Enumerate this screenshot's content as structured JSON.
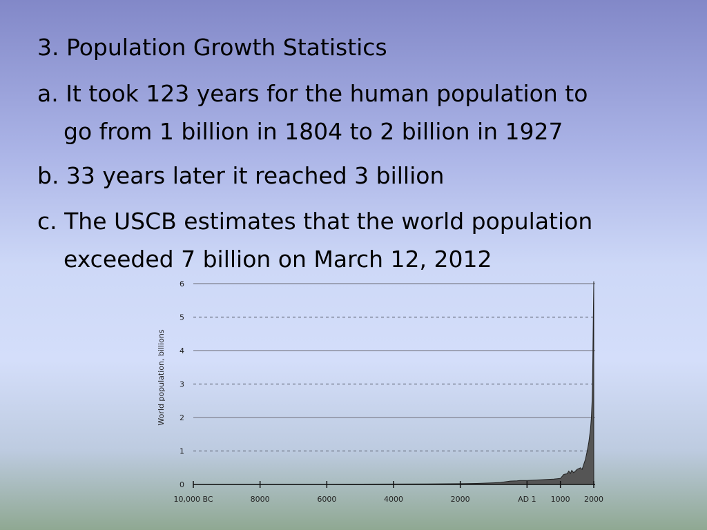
{
  "slide": {
    "heading": "3. Population Growth Statistics",
    "bullets": [
      {
        "line1": "a. It took 123 years for the human population to",
        "line2": "go from 1 billion in 1804 to 2 billion in 1927"
      },
      {
        "line1": "b. 33 years later it reached 3 billion",
        "line2": ""
      },
      {
        "line1": "c. The USCB estimates that the world population",
        "line2": "exceeded 7 billion on March 12, 2012"
      }
    ]
  },
  "chart_data": {
    "type": "area",
    "ylabel": "World population, billions",
    "xlabel": "",
    "ylim": [
      0,
      6
    ],
    "xlim": [
      -10000,
      2000
    ],
    "y_ticks": [
      0,
      1,
      2,
      3,
      4,
      5,
      6
    ],
    "x_ticks": [
      {
        "value": -10000,
        "label": "10,000 BC"
      },
      {
        "value": -8000,
        "label": "8000"
      },
      {
        "value": -6000,
        "label": "6000"
      },
      {
        "value": -4000,
        "label": "4000"
      },
      {
        "value": -2000,
        "label": "2000"
      },
      {
        "value": 0,
        "label": "AD 1"
      },
      {
        "value": 1000,
        "label": "1000"
      },
      {
        "value": 2000,
        "label": "2000"
      }
    ],
    "grid": "horizontal, solid at even values, dashed at odd values",
    "fill_color": "#555555",
    "x": [
      -10000,
      -8000,
      -6000,
      -5000,
      -4000,
      -3000,
      -2000,
      -1500,
      -1000,
      -800,
      -500,
      -300,
      -200,
      0,
      200,
      400,
      600,
      800,
      1000,
      1100,
      1200,
      1250,
      1300,
      1340,
      1400,
      1500,
      1600,
      1650,
      1700,
      1750,
      1800,
      1850,
      1900,
      1927,
      1950,
      1960,
      1970,
      1980,
      1990,
      2000
    ],
    "y": [
      0.002,
      0.005,
      0.007,
      0.01,
      0.012,
      0.015,
      0.022,
      0.03,
      0.05,
      0.06,
      0.1,
      0.11,
      0.12,
      0.12,
      0.13,
      0.14,
      0.15,
      0.16,
      0.18,
      0.3,
      0.32,
      0.4,
      0.33,
      0.42,
      0.35,
      0.45,
      0.5,
      0.45,
      0.6,
      0.75,
      0.98,
      1.26,
      1.65,
      2.0,
      2.52,
      3.0,
      3.7,
      4.45,
      5.3,
      6.07
    ]
  }
}
